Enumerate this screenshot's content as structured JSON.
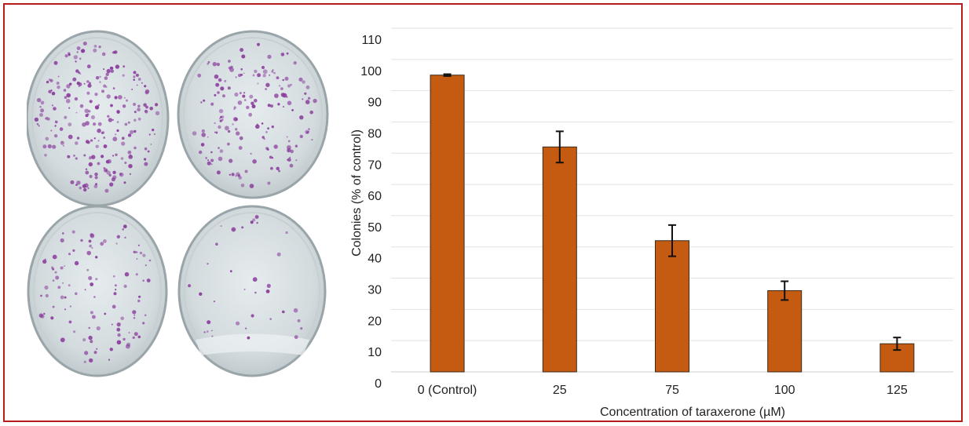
{
  "figure": {
    "border_color": "#b81d1d",
    "left_panel": {
      "image_name": "colony-formation-petri-dishes",
      "dish_count": 4,
      "colony_color": "#8a3c9c"
    }
  },
  "chart_data": {
    "type": "bar",
    "title": "",
    "xlabel": "Concentration of taraxerone (µM)",
    "ylabel": "Colonies (% of control)",
    "categories": [
      "0 (Control)",
      "25",
      "75",
      "100",
      "125"
    ],
    "values": [
      95,
      72,
      42,
      26,
      9
    ],
    "errors": [
      0.3,
      5,
      5,
      3,
      2
    ],
    "ylim": [
      0,
      110
    ],
    "yticks": [
      0,
      10,
      20,
      30,
      40,
      50,
      60,
      70,
      80,
      90,
      100,
      110
    ],
    "ytick_labels": [
      "0",
      "10",
      "20",
      "30",
      "40",
      "50",
      "60",
      "70",
      "80",
      "90",
      "100",
      "110"
    ],
    "grid": true,
    "legend": "none",
    "bar_color": "#c55a11"
  }
}
